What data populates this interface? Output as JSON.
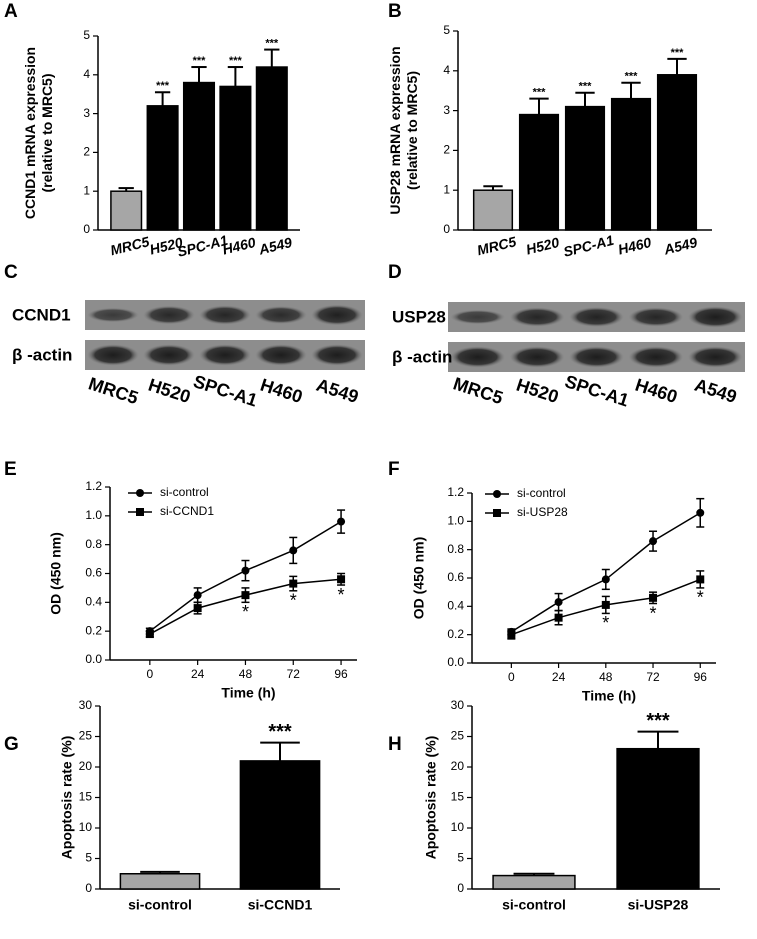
{
  "panel_labels": [
    "A",
    "B",
    "C",
    "D",
    "E",
    "F",
    "G",
    "H"
  ],
  "chart_data": [
    {
      "type": "bar",
      "y_label": [
        "CCND1 mRNA expression",
        "(relative to MRC5)"
      ],
      "categories": [
        "MRC5",
        "H520",
        "SPC-A1",
        "H460",
        "A549"
      ],
      "values": [
        1.0,
        3.2,
        3.8,
        3.7,
        4.2
      ],
      "errors": [
        0.08,
        0.35,
        0.4,
        0.5,
        0.45
      ],
      "colors": [
        "#a6a6a6",
        "#000000",
        "#000000",
        "#000000",
        "#000000"
      ],
      "annotations": [
        null,
        "***",
        "***",
        "***",
        "***"
      ],
      "ylim": [
        0,
        5
      ],
      "yticks": [
        0,
        1,
        2,
        3,
        4,
        5
      ]
    },
    {
      "type": "bar",
      "y_label": [
        "USP28 mRNA expression",
        "(relative to MRC5)"
      ],
      "categories": [
        "MRC5",
        "H520",
        "SPC-A1",
        "H460",
        "A549"
      ],
      "values": [
        1.0,
        2.9,
        3.1,
        3.3,
        3.9
      ],
      "errors": [
        0.1,
        0.4,
        0.35,
        0.4,
        0.4
      ],
      "colors": [
        "#a6a6a6",
        "#000000",
        "#000000",
        "#000000",
        "#000000"
      ],
      "annotations": [
        null,
        "***",
        "***",
        "***",
        "***"
      ],
      "ylim": [
        0,
        5
      ],
      "yticks": [
        0,
        1,
        2,
        3,
        4,
        5
      ]
    },
    {
      "type": "line",
      "x_label": "Time (h)",
      "y_label": [
        "OD (450 nm)"
      ],
      "x": [
        0,
        24,
        48,
        72,
        96
      ],
      "xlim": [
        -20,
        104
      ],
      "xticks": [
        0,
        24,
        48,
        72,
        96
      ],
      "ylim": [
        0,
        1.2
      ],
      "yticks": [
        {
          "value": 0,
          "label": "0.0"
        },
        0.2,
        0.4,
        0.6,
        0.8,
        {
          "value": 1,
          "label": "1.0"
        },
        1.2
      ],
      "legend": "upper-left",
      "series": [
        {
          "name": "si-control",
          "color": "#000000",
          "marker": "circle",
          "values": [
            0.2,
            0.45,
            0.62,
            0.76,
            0.96
          ],
          "errors": [
            0.02,
            0.05,
            0.07,
            0.09,
            0.08
          ]
        },
        {
          "name": "si-CCND1",
          "color": "#000000",
          "marker": "square",
          "values": [
            0.18,
            0.36,
            0.45,
            0.53,
            0.56
          ],
          "errors": [
            0.02,
            0.04,
            0.05,
            0.05,
            0.04
          ],
          "annotations": [
            null,
            null,
            "*",
            "*",
            "*"
          ]
        }
      ]
    },
    {
      "type": "line",
      "x_label": "Time (h)",
      "y_label": [
        "OD (450 nm)"
      ],
      "x": [
        0,
        24,
        48,
        72,
        96
      ],
      "xlim": [
        -20,
        104
      ],
      "xticks": [
        0,
        24,
        48,
        72,
        96
      ],
      "ylim": [
        0,
        1.2
      ],
      "yticks": [
        {
          "value": 0,
          "label": "0.0"
        },
        0.2,
        0.4,
        0.6,
        0.8,
        {
          "value": 1,
          "label": "1.0"
        },
        1.2
      ],
      "legend": "upper-left",
      "series": [
        {
          "name": "si-control",
          "color": "#000000",
          "marker": "circle",
          "values": [
            0.22,
            0.43,
            0.59,
            0.86,
            1.06
          ],
          "errors": [
            0.02,
            0.06,
            0.07,
            0.07,
            0.1
          ]
        },
        {
          "name": "si-USP28",
          "color": "#000000",
          "marker": "square",
          "values": [
            0.2,
            0.32,
            0.41,
            0.46,
            0.59
          ],
          "errors": [
            0.03,
            0.05,
            0.06,
            0.04,
            0.06
          ],
          "annotations": [
            null,
            null,
            "*",
            "*",
            "*"
          ]
        }
      ]
    },
    {
      "type": "bar",
      "y_label": [
        "Apoptosis rate (%)"
      ],
      "categories": [
        "si-control",
        "si-CCND1"
      ],
      "values": [
        2.5,
        21
      ],
      "errors": [
        0.3,
        3
      ],
      "colors": [
        "#a6a6a6",
        "#000000"
      ],
      "annotations": [
        null,
        "***"
      ],
      "ylim": [
        0,
        30
      ],
      "yticks": [
        0,
        5,
        10,
        15,
        20,
        25,
        30
      ]
    },
    {
      "type": "bar",
      "y_label": [
        "Apoptosis rate (%)"
      ],
      "categories": [
        "si-control",
        "si-USP28"
      ],
      "values": [
        2.2,
        23
      ],
      "errors": [
        0.3,
        2.8
      ],
      "colors": [
        "#a6a6a6",
        "#000000"
      ],
      "annotations": [
        null,
        "***"
      ],
      "ylim": [
        0,
        30
      ],
      "yticks": [
        0,
        5,
        10,
        15,
        20,
        25,
        30
      ]
    }
  ],
  "blots": [
    {
      "rows": [
        "CCND1",
        "β -actin"
      ],
      "lanes": [
        "MRC5",
        "H520",
        "SPC-A1",
        "H460",
        "A549"
      ]
    },
    {
      "rows": [
        "USP28",
        "β -actin"
      ],
      "lanes": [
        "MRC5",
        "H520",
        "SPC-A1",
        "H460",
        "A549"
      ]
    }
  ]
}
